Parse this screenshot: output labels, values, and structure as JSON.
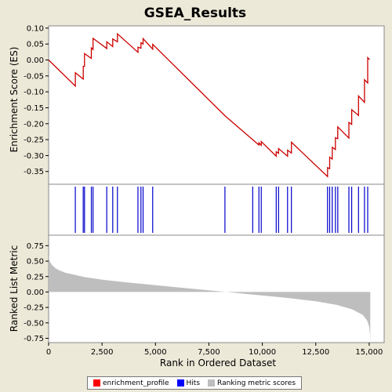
{
  "chart_data": {
    "type": "line",
    "title": "GSEA_Results",
    "xlabel": "Rank in Ordered Dataset",
    "xlim": [
      0,
      15700
    ],
    "x_ticks": [
      "0",
      "2,500",
      "5,000",
      "7,500",
      "10,000",
      "12,500",
      "15,000"
    ],
    "x_tick_values": [
      0,
      2500,
      5000,
      7500,
      10000,
      12500,
      15000
    ],
    "es_panel": {
      "ylabel": "Enrichment Score (ES)",
      "ylim": [
        -0.39,
        0.107
      ],
      "y_ticks": [
        "0.10",
        "0.05",
        "0.00",
        "-0.05",
        "-0.10",
        "-0.15",
        "-0.20",
        "-0.25",
        "-0.30",
        "-0.35"
      ],
      "y_tick_values": [
        0.1,
        0.05,
        0.0,
        -0.05,
        -0.1,
        -0.15,
        -0.2,
        -0.25,
        -0.3,
        -0.35
      ],
      "series": [
        {
          "name": "enrichment_profile",
          "color": "#CC0000",
          "points": [
            [
              0,
              0.0
            ],
            [
              1250,
              -0.082
            ],
            [
              1250,
              -0.04
            ],
            [
              1620,
              -0.06
            ],
            [
              1620,
              -0.02
            ],
            [
              1680,
              -0.02
            ],
            [
              1680,
              0.02
            ],
            [
              2000,
              0.005
            ],
            [
              2000,
              0.038
            ],
            [
              2080,
              0.033
            ],
            [
              2080,
              0.068
            ],
            [
              2720,
              0.036
            ],
            [
              2720,
              0.057
            ],
            [
              3000,
              0.042
            ],
            [
              3000,
              0.066
            ],
            [
              3220,
              0.057
            ],
            [
              3220,
              0.082
            ],
            [
              4180,
              0.024
            ],
            [
              4180,
              0.04
            ],
            [
              4320,
              0.037
            ],
            [
              4320,
              0.054
            ],
            [
              4420,
              0.05
            ],
            [
              4420,
              0.067
            ],
            [
              4870,
              0.034
            ],
            [
              4870,
              0.049
            ],
            [
              8250,
              -0.175
            ],
            [
              9550,
              -0.25
            ],
            [
              9550,
              -0.25
            ],
            [
              9840,
              -0.267
            ],
            [
              9840,
              -0.26
            ],
            [
              9950,
              -0.268
            ],
            [
              9950,
              -0.256
            ],
            [
              10650,
              -0.302
            ],
            [
              10650,
              -0.288
            ],
            [
              10760,
              -0.293
            ],
            [
              10760,
              -0.278
            ],
            [
              11180,
              -0.302
            ],
            [
              11180,
              -0.283
            ],
            [
              11360,
              -0.292
            ],
            [
              11360,
              -0.258
            ],
            [
              13050,
              -0.366
            ],
            [
              13050,
              -0.338
            ],
            [
              13150,
              -0.341
            ],
            [
              13150,
              -0.305
            ],
            [
              13270,
              -0.311
            ],
            [
              13270,
              -0.274
            ],
            [
              13420,
              -0.281
            ],
            [
              13420,
              -0.244
            ],
            [
              13530,
              -0.247
            ],
            [
              13530,
              -0.21
            ],
            [
              14050,
              -0.245
            ],
            [
              14050,
              -0.196
            ],
            [
              14180,
              -0.202
            ],
            [
              14180,
              -0.156
            ],
            [
              14500,
              -0.174
            ],
            [
              14500,
              -0.113
            ],
            [
              14780,
              -0.133
            ],
            [
              14780,
              -0.062
            ],
            [
              14930,
              -0.072
            ],
            [
              14930,
              0.007
            ],
            [
              15020,
              0.001
            ]
          ]
        }
      ]
    },
    "hits_panel": {
      "name": "Hits",
      "color": "#0000CC",
      "positions": [
        1250,
        1620,
        1680,
        2000,
        2080,
        2720,
        3000,
        3220,
        4180,
        4320,
        4420,
        4870,
        8250,
        9550,
        9840,
        9950,
        10650,
        10760,
        11180,
        11360,
        13050,
        13150,
        13270,
        13420,
        13530,
        14050,
        14180,
        14500,
        14780,
        14930
      ]
    },
    "rank_panel": {
      "name": "Ranking metric scores",
      "color": "#BEBEBE",
      "ylabel": "Ranked List Metric",
      "ylim": [
        -0.82,
        0.92
      ],
      "y_ticks": [
        "0.75",
        "0.50",
        "0.25",
        "0.00",
        "-0.25",
        "-0.50",
        "-0.75"
      ],
      "y_tick_values": [
        0.75,
        0.5,
        0.25,
        0.0,
        -0.25,
        -0.5,
        -0.75
      ],
      "points": [
        [
          0,
          0.58
        ],
        [
          50,
          0.5
        ],
        [
          150,
          0.44
        ],
        [
          300,
          0.39
        ],
        [
          500,
          0.35
        ],
        [
          800,
          0.31
        ],
        [
          1200,
          0.28
        ],
        [
          1700,
          0.24
        ],
        [
          2500,
          0.2
        ],
        [
          3500,
          0.16
        ],
        [
          5000,
          0.11
        ],
        [
          6500,
          0.06
        ],
        [
          8000,
          0.01
        ],
        [
          8300,
          0.0
        ],
        [
          9500,
          -0.04
        ],
        [
          11000,
          -0.09
        ],
        [
          12500,
          -0.15
        ],
        [
          13500,
          -0.21
        ],
        [
          14200,
          -0.28
        ],
        [
          14700,
          -0.37
        ],
        [
          14900,
          -0.46
        ],
        [
          15000,
          -0.56
        ],
        [
          15040,
          -0.7
        ],
        [
          15050,
          -0.8
        ]
      ]
    },
    "legend": [
      {
        "label": "enrichment_profile",
        "color": "#FF0000"
      },
      {
        "label": "Hits",
        "color": "#0000FF"
      },
      {
        "label": "Ranking metric scores",
        "color": "#BEBEBE"
      }
    ]
  }
}
